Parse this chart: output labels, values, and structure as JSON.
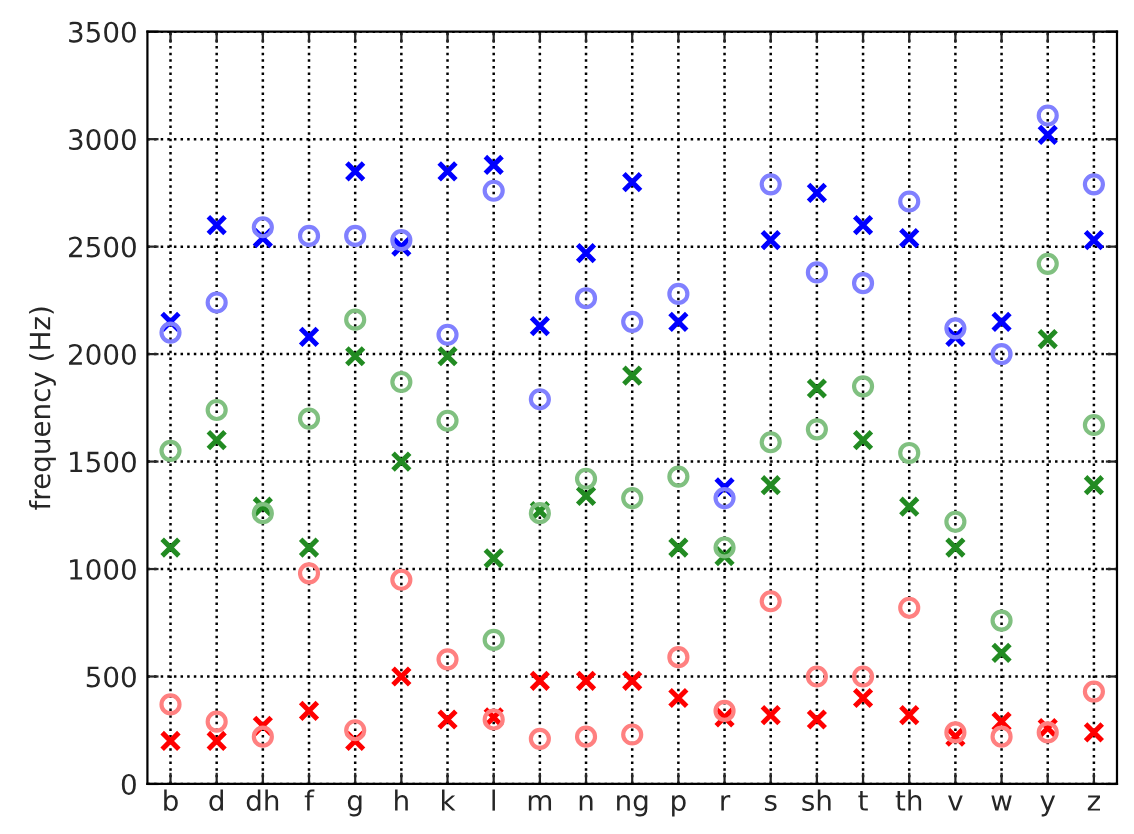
{
  "chart_data": {
    "type": "scatter",
    "ylabel": "frequency (Hz)",
    "categories": [
      "b",
      "d",
      "dh",
      "f",
      "g",
      "h",
      "k",
      "l",
      "m",
      "n",
      "ng",
      "p",
      "r",
      "s",
      "sh",
      "t",
      "th",
      "v",
      "w",
      "y",
      "z"
    ],
    "ylim": [
      0,
      3500
    ],
    "yticks": [
      0,
      500,
      1000,
      1500,
      2000,
      2500,
      3000,
      3500
    ],
    "grid": true,
    "series": [
      {
        "color": "#ff8080",
        "marker": "circle",
        "values": [
          370,
          290,
          220,
          980,
          250,
          950,
          580,
          300,
          210,
          220,
          230,
          590,
          340,
          850,
          500,
          500,
          820,
          240,
          220,
          240,
          430
        ]
      },
      {
        "color": "#ff0000",
        "marker": "cross",
        "values": [
          200,
          200,
          270,
          340,
          200,
          500,
          300,
          310,
          480,
          480,
          480,
          400,
          310,
          320,
          300,
          400,
          320,
          220,
          290,
          260,
          240
        ]
      },
      {
        "color": "#80c080",
        "marker": "circle",
        "values": [
          1550,
          1740,
          1260,
          1700,
          2160,
          1870,
          1690,
          670,
          1260,
          1420,
          1330,
          1430,
          1100,
          1590,
          1650,
          1850,
          1540,
          1220,
          760,
          2420,
          1670
        ]
      },
      {
        "color": "#228b22",
        "marker": "cross",
        "values": [
          1100,
          1600,
          1290,
          1100,
          1990,
          1500,
          1990,
          1050,
          1270,
          1340,
          1900,
          1100,
          1060,
          1390,
          1840,
          1600,
          1290,
          1100,
          610,
          2070,
          1390
        ]
      },
      {
        "color": "#8080ff",
        "marker": "circle",
        "values": [
          2100,
          2240,
          2590,
          2550,
          2550,
          2530,
          2090,
          2760,
          1790,
          2260,
          2150,
          2280,
          1330,
          2790,
          2380,
          2330,
          2710,
          2120,
          2000,
          3110,
          2790
        ]
      },
      {
        "color": "#0000ff",
        "marker": "cross",
        "values": [
          2150,
          2600,
          2540,
          2080,
          2850,
          2500,
          2850,
          2880,
          2130,
          2470,
          2800,
          2150,
          1380,
          2530,
          2750,
          2600,
          2540,
          2080,
          2150,
          3020,
          2530
        ]
      }
    ]
  }
}
